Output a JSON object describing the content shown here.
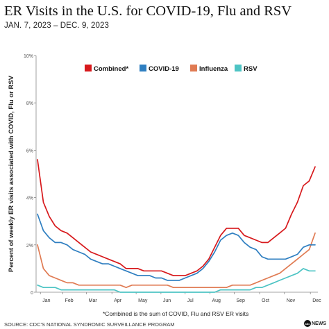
{
  "header": {
    "title": "ER Visits in the U.S. for COVID-19, Flu and RSV",
    "subtitle": "JAN. 7, 2023 – DEC. 9, 2023"
  },
  "footer": {
    "footnote": "*Combined is the sum of COVID, Flu and RSV ER visits",
    "source": "SOURCE: CDC'S NATIONAL SYNDROMIC SURVEILLANCE PROGRAM",
    "logo_mark": "abc",
    "logo_text": "NEWS"
  },
  "chart_data": {
    "type": "line",
    "ylabel": "Percent of weekly ER visits associated with COVID, Flu or RSV",
    "ylim": [
      0,
      10
    ],
    "yticks": [
      "0",
      "2%",
      "4%",
      "6%",
      "8%",
      "10%"
    ],
    "ytick_values": [
      0,
      2,
      4,
      6,
      8,
      10
    ],
    "month_labels": [
      "Jan",
      "Feb",
      "Mar",
      "Apr",
      "May",
      "Jun",
      "Jul",
      "Aug",
      "Sep",
      "Oct",
      "Nov",
      "Dec"
    ],
    "month_positions": [
      0.5,
      4.3,
      8.3,
      12.6,
      16.7,
      20.9,
      25.0,
      29.2,
      33.3,
      37.6,
      41.8,
      46.2
    ],
    "legend_position": "top",
    "grid": false,
    "series": [
      {
        "name": "Combined*",
        "color": "#d7191c",
        "values": [
          5.6,
          3.8,
          3.2,
          2.8,
          2.6,
          2.5,
          2.3,
          2.1,
          1.9,
          1.7,
          1.6,
          1.5,
          1.4,
          1.3,
          1.2,
          1.0,
          1.0,
          1.0,
          0.9,
          0.9,
          0.9,
          0.9,
          0.8,
          0.7,
          0.7,
          0.7,
          0.8,
          0.9,
          1.1,
          1.4,
          1.9,
          2.4,
          2.7,
          2.7,
          2.7,
          2.4,
          2.3,
          2.2,
          2.1,
          2.1,
          2.3,
          2.5,
          2.7,
          3.3,
          3.8,
          4.5,
          4.7,
          5.3
        ]
      },
      {
        "name": "COVID-19",
        "color": "#2f7fc1",
        "values": [
          3.3,
          2.6,
          2.3,
          2.1,
          2.1,
          2.0,
          1.8,
          1.7,
          1.6,
          1.4,
          1.3,
          1.2,
          1.2,
          1.1,
          1.0,
          0.9,
          0.8,
          0.7,
          0.7,
          0.7,
          0.6,
          0.6,
          0.5,
          0.5,
          0.5,
          0.6,
          0.7,
          0.8,
          1.0,
          1.3,
          1.7,
          2.2,
          2.4,
          2.5,
          2.4,
          2.1,
          1.9,
          1.8,
          1.5,
          1.4,
          1.4,
          1.4,
          1.4,
          1.5,
          1.6,
          1.9,
          2.0,
          2.0
        ]
      },
      {
        "name": "Influenza",
        "color": "#e07b53",
        "values": [
          2.0,
          1.0,
          0.7,
          0.6,
          0.5,
          0.4,
          0.4,
          0.3,
          0.3,
          0.3,
          0.3,
          0.3,
          0.3,
          0.3,
          0.3,
          0.2,
          0.3,
          0.3,
          0.3,
          0.3,
          0.3,
          0.3,
          0.3,
          0.2,
          0.2,
          0.2,
          0.2,
          0.2,
          0.2,
          0.2,
          0.2,
          0.2,
          0.2,
          0.3,
          0.3,
          0.3,
          0.3,
          0.4,
          0.5,
          0.6,
          0.7,
          0.8,
          1.0,
          1.2,
          1.4,
          1.6,
          1.8,
          2.5
        ]
      },
      {
        "name": "RSV",
        "color": "#4dc4c4",
        "values": [
          0.3,
          0.2,
          0.2,
          0.2,
          0.1,
          0.1,
          0.1,
          0.1,
          0.1,
          0.1,
          0.1,
          0.1,
          0.1,
          0.1,
          0.0,
          0.0,
          0.0,
          0.0,
          0.0,
          0.0,
          0.0,
          0.0,
          0.0,
          0.0,
          0.0,
          0.0,
          0.0,
          0.0,
          0.0,
          0.0,
          0.0,
          0.1,
          0.1,
          0.1,
          0.1,
          0.1,
          0.1,
          0.2,
          0.2,
          0.3,
          0.4,
          0.5,
          0.6,
          0.7,
          0.8,
          1.0,
          0.9,
          0.9
        ]
      }
    ]
  }
}
